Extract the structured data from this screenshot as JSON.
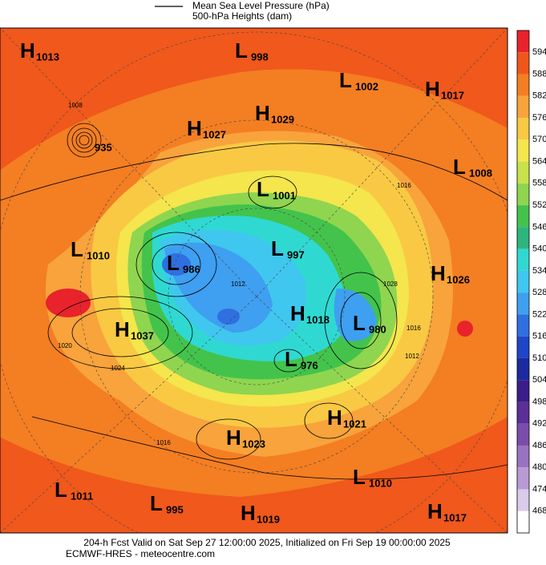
{
  "header": {
    "legend_line": "Mean Sea Level Pressure (hPa)",
    "subtitle": "500-hPa Heights (dam)"
  },
  "colorbar": {
    "labels": [
      594,
      588,
      582,
      576,
      570,
      564,
      558,
      552,
      546,
      540,
      534,
      528,
      522,
      516,
      510,
      504,
      498,
      492,
      486,
      480,
      474,
      468
    ],
    "colors": [
      "#e8232b",
      "#f0561b",
      "#f47e22",
      "#f8a33c",
      "#f9c944",
      "#f4e64c",
      "#c9e14a",
      "#8fd550",
      "#43c34c",
      "#2eb57e",
      "#2fd9d2",
      "#3fc7ef",
      "#3f9ff0",
      "#2f6fe0",
      "#1f46c8",
      "#1b2aa0",
      "#3a1d8a",
      "#5b2f97",
      "#7b4cab",
      "#9b72c1",
      "#b99ad5",
      "#d9cbe9",
      "#ffffff"
    ]
  },
  "centers": [
    {
      "symbol": "H",
      "value": "1013"
    },
    {
      "symbol": "L",
      "value": "998"
    },
    {
      "symbol": "L",
      "value": "1002"
    },
    {
      "symbol": "H",
      "value": "1017"
    },
    {
      "symbol": "H",
      "value": "1029"
    },
    {
      "symbol": "H",
      "value": "1027"
    },
    {
      "symbol": "",
      "value": "935"
    },
    {
      "symbol": "L",
      "value": "1008"
    },
    {
      "symbol": "L",
      "value": "1001"
    },
    {
      "symbol": "L",
      "value": "1010"
    },
    {
      "symbol": "L",
      "value": "997"
    },
    {
      "symbol": "L",
      "value": "986"
    },
    {
      "symbol": "H",
      "value": "1026"
    },
    {
      "symbol": "H",
      "value": "1037"
    },
    {
      "symbol": "H",
      "value": "1018"
    },
    {
      "symbol": "L",
      "value": "980"
    },
    {
      "symbol": "L",
      "value": "976"
    },
    {
      "symbol": "H",
      "value": "1021"
    },
    {
      "symbol": "H",
      "value": "1023"
    },
    {
      "symbol": "L",
      "value": "1010"
    },
    {
      "symbol": "L",
      "value": "1011"
    },
    {
      "symbol": "L",
      "value": "995"
    },
    {
      "symbol": "H",
      "value": "1019"
    },
    {
      "symbol": "H",
      "value": "1017"
    }
  ],
  "contour_labels": [
    "1008",
    "1020",
    "1024",
    "1016",
    "1012",
    "1028",
    "1016",
    "1012",
    "1016"
  ],
  "footer": {
    "line1": "204-h Fcst Valid on Sat Sep 27 12:00:00 2025, Initialized on Fri Sep 19 00:00:00 2025",
    "line2": "ECMWF-HRES - meteocentre.com"
  }
}
